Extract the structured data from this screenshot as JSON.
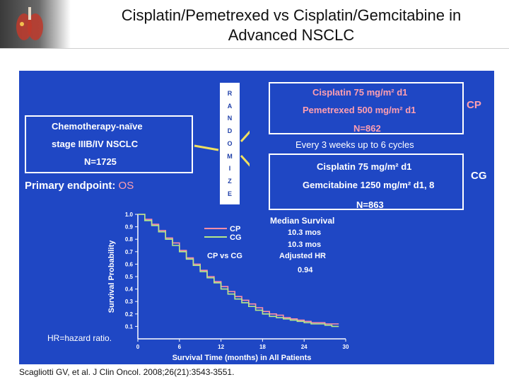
{
  "header": {
    "title_line1": "Cisplatin/Pemetrexed vs Cisplatin/Gemcitabine in",
    "title_line2": "Advanced NSCLC",
    "logo_icon": "lungs-icon"
  },
  "enrollment": {
    "line1": "Chemotherapy-naïve",
    "line2": "stage IIIB/IV NSCLC",
    "n": "N=1725"
  },
  "primary_endpoint_label": "Primary endpoint:",
  "primary_endpoint_value": "OS",
  "randomize_letters": [
    "R",
    "A",
    "N",
    "D",
    "O",
    "M",
    "I",
    "Z",
    "E"
  ],
  "arm_cp": {
    "line1": "Cisplatin 75 mg/m² d1",
    "line2": "Pemetrexed 500 mg/m² d1",
    "n": "N=862",
    "tag": "CP"
  },
  "cycles": "Every 3 weeks up to 6 cycles",
  "arm_cg": {
    "line1": "Cisplatin 75 mg/m² d1",
    "line2": "Gemcitabine 1250 mg/m² d1, 8",
    "n": "N=863",
    "tag": "CG"
  },
  "median": {
    "heading": "Median Survival",
    "cp": "10.3 mos",
    "cg": "10.3 mos",
    "hr_label": "Adjusted HR",
    "hr_value": "0.94"
  },
  "footnote": "HR=hazard ratio.",
  "reference": "Scagliotti GV, et al. J Clin Oncol. 2008;26(21):3543-3551.",
  "chart_data": {
    "type": "line",
    "xlabel": "Survival Time (months) in All Patients",
    "ylabel": "Survival Probability",
    "xlim": [
      0,
      30
    ],
    "ylim": [
      0.0,
      1.0
    ],
    "xticks": [
      "0",
      "6",
      "12",
      "18",
      "24",
      "30"
    ],
    "yticks": [
      "0.1",
      "0.2",
      "0.3",
      "0.4",
      "0.5",
      "0.6",
      "0.7",
      "0.8",
      "0.9",
      "1.0"
    ],
    "legend": [
      "CP",
      "CG"
    ],
    "legend_title": "CP vs CG",
    "series": [
      {
        "name": "CP",
        "color": "#ff8fa6",
        "x": [
          0,
          1,
          2,
          3,
          4,
          5,
          6,
          7,
          8,
          9,
          10,
          11,
          12,
          13,
          14,
          15,
          16,
          17,
          18,
          19,
          20,
          21,
          22,
          23,
          24,
          25,
          26,
          27,
          28,
          29
        ],
        "y": [
          1.0,
          0.96,
          0.92,
          0.87,
          0.81,
          0.77,
          0.71,
          0.65,
          0.6,
          0.55,
          0.5,
          0.46,
          0.42,
          0.38,
          0.34,
          0.31,
          0.28,
          0.25,
          0.22,
          0.2,
          0.19,
          0.17,
          0.16,
          0.15,
          0.14,
          0.13,
          0.13,
          0.12,
          0.12,
          0.12
        ]
      },
      {
        "name": "CG",
        "color": "#b5e88a",
        "x": [
          0,
          1,
          2,
          3,
          4,
          5,
          6,
          7,
          8,
          9,
          10,
          11,
          12,
          13,
          14,
          15,
          16,
          17,
          18,
          19,
          20,
          21,
          22,
          23,
          24,
          25,
          26,
          27,
          28,
          29
        ],
        "y": [
          1.0,
          0.95,
          0.91,
          0.86,
          0.8,
          0.75,
          0.7,
          0.64,
          0.59,
          0.54,
          0.49,
          0.45,
          0.4,
          0.36,
          0.32,
          0.29,
          0.26,
          0.23,
          0.2,
          0.18,
          0.17,
          0.16,
          0.15,
          0.14,
          0.13,
          0.12,
          0.12,
          0.11,
          0.1,
          0.1
        ]
      }
    ]
  }
}
